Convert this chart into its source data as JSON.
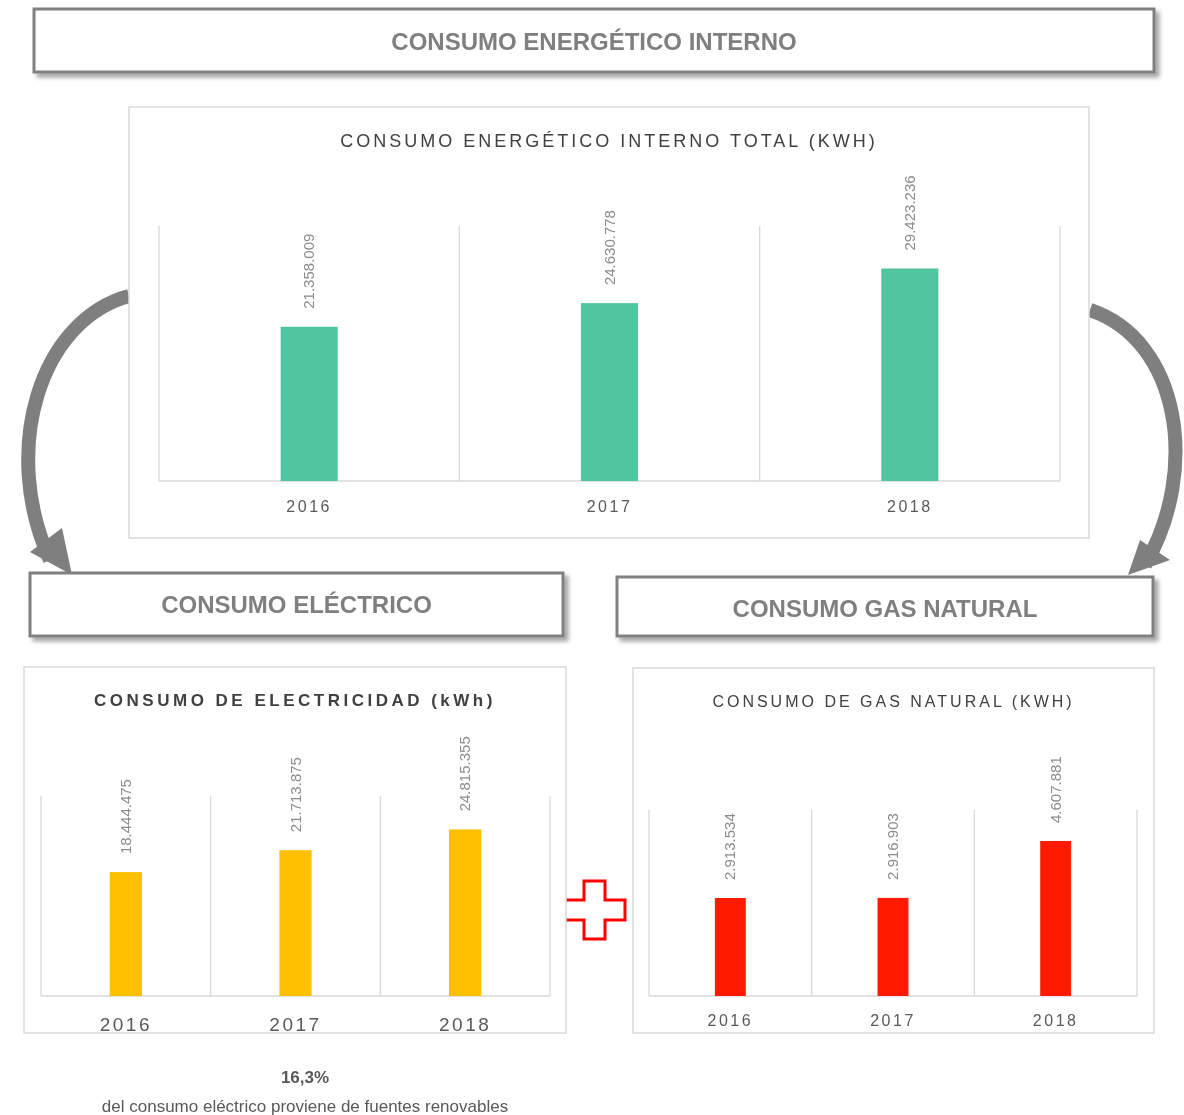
{
  "chart_data": [
    {
      "type": "bar",
      "title": "CONSUMO ENERGÉTICO INTERNO TOTAL (KWH)",
      "annotations": [
        "CONSUMO ENERGÉTICO INTERNO"
      ],
      "categories": [
        "2016",
        "2017",
        "2018"
      ],
      "values": [
        21358009,
        24630778,
        29423236
      ],
      "value_labels": [
        "21.358.009",
        "24.630.778",
        "29.423.236"
      ],
      "color": "#4fc5a0",
      "grid": "x"
    },
    {
      "type": "bar",
      "title": "CONSUMO DE ELECTRICIDAD (kWh)",
      "annotations": [
        "CONSUMO ELÉCTRICO",
        "16,3%",
        "del consumo eléctrico proviene de fuentes renovables"
      ],
      "categories": [
        "2016",
        "2017",
        "2018"
      ],
      "values": [
        18444475,
        21713875,
        24815355
      ],
      "value_labels": [
        "18.444.475",
        "21.713.875",
        "24.815.355"
      ],
      "color": "#ffc000",
      "grid": "x"
    },
    {
      "type": "bar",
      "title": "CONSUMO DE GAS NATURAL (KWH)",
      "annotations": [
        "CONSUMO GAS NATURAL"
      ],
      "categories": [
        "2016",
        "2017",
        "2018"
      ],
      "values": [
        2913534,
        2916903,
        4607881
      ],
      "value_labels": [
        "2.913.534",
        "2.916.903",
        "4.607.881"
      ],
      "color": "#ff1a00",
      "grid": "x"
    }
  ]
}
